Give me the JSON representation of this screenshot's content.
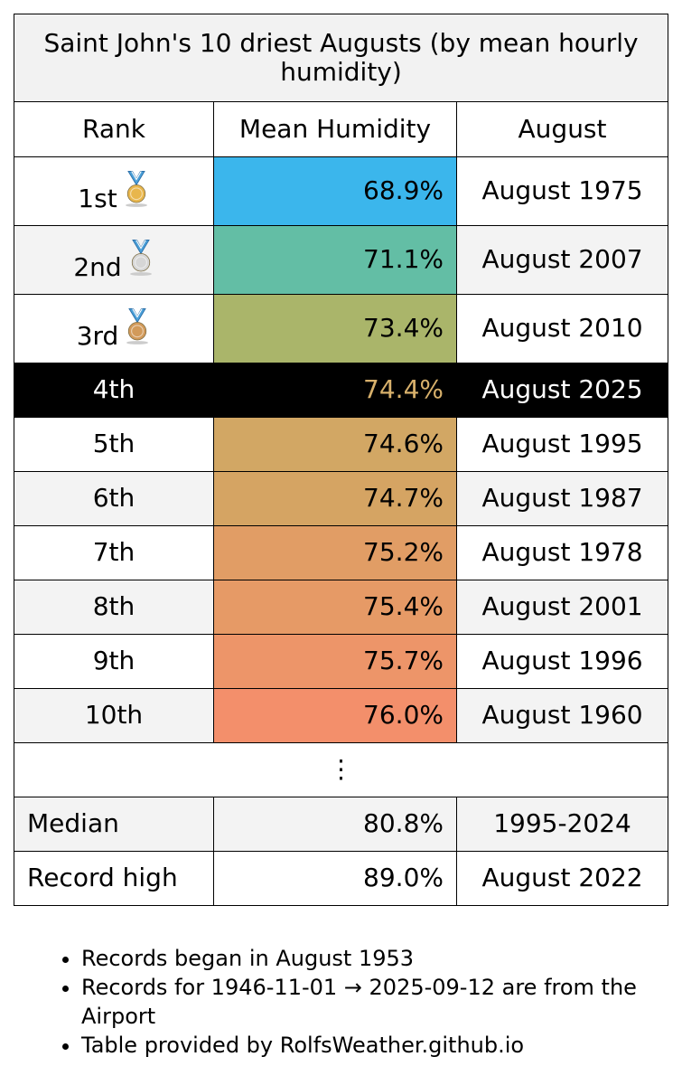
{
  "title": "Saint John's 10 driest Augusts (by mean hourly humidity)",
  "headers": {
    "rank": "Rank",
    "humidity": "Mean Humidity",
    "month": "August"
  },
  "rows": [
    {
      "rank": "1st",
      "medal": "gold-medal",
      "humidity": "68.9%",
      "month": "August 1975",
      "color": "#3bb6ec"
    },
    {
      "rank": "2nd",
      "medal": "silver-medal",
      "humidity": "71.1%",
      "month": "August 2007",
      "color": "#63bea5"
    },
    {
      "rank": "3rd",
      "medal": "bronze-medal",
      "humidity": "73.4%",
      "month": "August 2010",
      "color": "#aab56a"
    },
    {
      "rank": "4th",
      "medal": "",
      "humidity": "74.4%",
      "month": "August 2025",
      "color": "#000000"
    },
    {
      "rank": "5th",
      "medal": "",
      "humidity": "74.6%",
      "month": "August 1995",
      "color": "#d2a764"
    },
    {
      "rank": "6th",
      "medal": "",
      "humidity": "74.7%",
      "month": "August 1987",
      "color": "#d5a463"
    },
    {
      "rank": "7th",
      "medal": "",
      "humidity": "75.2%",
      "month": "August 1978",
      "color": "#e19d65"
    },
    {
      "rank": "8th",
      "medal": "",
      "humidity": "75.4%",
      "month": "August 2001",
      "color": "#e69a66"
    },
    {
      "rank": "9th",
      "medal": "",
      "humidity": "75.7%",
      "month": "August 1996",
      "color": "#ed9569"
    },
    {
      "rank": "10th",
      "medal": "",
      "humidity": "76.0%",
      "month": "August 1960",
      "color": "#f38f6b"
    }
  ],
  "ellipsis": "⋮",
  "median": {
    "label": "Median",
    "humidity": "80.8%",
    "period": "1995-2024"
  },
  "record_high": {
    "label": "Record high",
    "humidity": "89.0%",
    "month": "August 2022"
  },
  "notes": [
    "Records began in August 1953",
    "Records for 1946-11-01 → 2025-09-12 are from the Airport",
    "Table provided by RolfsWeather.github.io"
  ]
}
